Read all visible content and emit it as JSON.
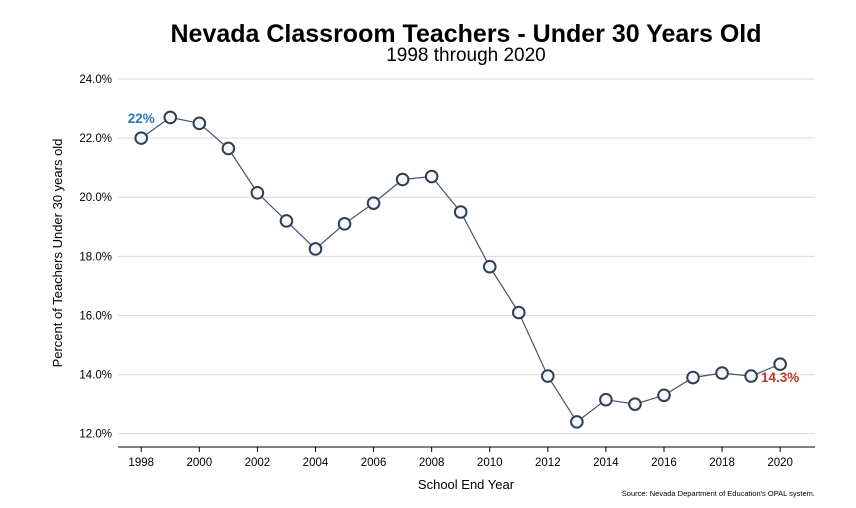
{
  "chart_data": {
    "type": "line",
    "title": "Nevada Classroom Teachers - Under 30 Years Old",
    "subtitle": "1998 through 2020",
    "xlabel": "School End Year",
    "ylabel": "Percent of Teachers Under 30 years old",
    "source": "Source: Nevada Department of Education's OPAL system.",
    "x": [
      1998,
      1999,
      2000,
      2001,
      2002,
      2003,
      2004,
      2005,
      2006,
      2007,
      2008,
      2009,
      2010,
      2011,
      2012,
      2013,
      2014,
      2015,
      2016,
      2017,
      2018,
      2019,
      2020
    ],
    "values": [
      22.0,
      22.7,
      22.5,
      21.65,
      20.15,
      19.2,
      18.25,
      19.1,
      19.8,
      20.6,
      20.7,
      19.5,
      17.65,
      16.1,
      13.95,
      12.4,
      13.15,
      13.0,
      13.3,
      13.9,
      14.05,
      13.95,
      14.35
    ],
    "xticks": [
      "1998",
      "2000",
      "2002",
      "2004",
      "2006",
      "2008",
      "2010",
      "2012",
      "2014",
      "2016",
      "2018",
      "2020"
    ],
    "xtick_values": [
      1998,
      2000,
      2002,
      2004,
      2006,
      2008,
      2010,
      2012,
      2014,
      2016,
      2018,
      2020
    ],
    "yticks": [
      "12.0%",
      "14.0%",
      "16.0%",
      "18.0%",
      "20.0%",
      "22.0%",
      "24.0%"
    ],
    "ytick_values": [
      12,
      14,
      16,
      18,
      20,
      22,
      24
    ],
    "xlim": [
      1997.2,
      2021.2
    ],
    "ylim": [
      11.55,
      24.0
    ],
    "grid": "horizontal",
    "annotations": [
      {
        "text": "22%",
        "x": 1998,
        "y": 22.0,
        "color": "#2e75b6",
        "placement": "above-left"
      },
      {
        "text": "14.3%",
        "x": 2020,
        "y": 14.35,
        "color": "#c0392b",
        "placement": "below"
      }
    ],
    "colors": {
      "line": "#44546a",
      "marker_stroke": "#2f3f55",
      "marker_fill": "#f5f7fa"
    }
  }
}
